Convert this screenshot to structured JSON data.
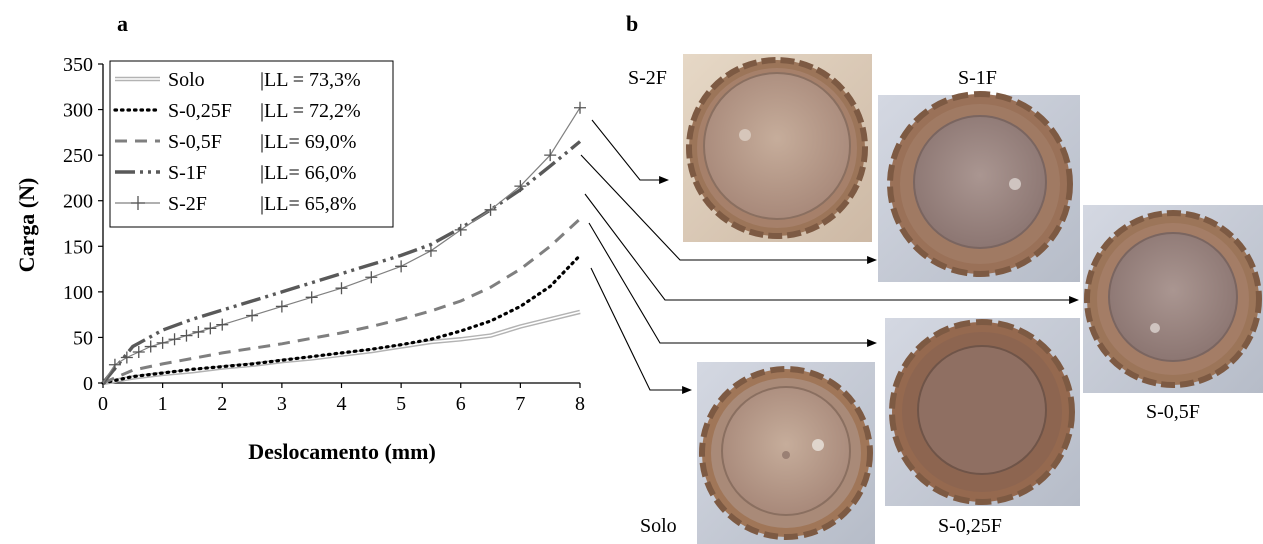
{
  "panels": {
    "a": "a",
    "b": "b"
  },
  "chart_data": {
    "type": "line",
    "xlabel": "Deslocamento (mm)",
    "ylabel": "Carga (N)",
    "xlim": [
      0,
      8
    ],
    "ylim": [
      0,
      350
    ],
    "xticks": [
      0,
      1,
      2,
      3,
      4,
      5,
      6,
      7,
      8
    ],
    "yticks": [
      0,
      50,
      100,
      150,
      200,
      250,
      300,
      350
    ],
    "grid": false,
    "legend_position": "top-left",
    "series": [
      {
        "name": "Solo",
        "ll": "|LL = 73,3%",
        "style": "double",
        "color": "#b3b3b3",
        "x": [
          0,
          0.5,
          1,
          1.5,
          2,
          2.5,
          3,
          3.5,
          4,
          4.5,
          5,
          5.5,
          6,
          6.5,
          7,
          7.5,
          8
        ],
        "y": [
          0,
          6,
          10,
          13,
          17,
          20,
          24,
          27,
          31,
          35,
          40,
          45,
          48,
          52,
          62,
          70,
          78
        ]
      },
      {
        "name": "S-0,25F",
        "ll": "|LL = 72,2%",
        "style": "dotted",
        "color": "#000000",
        "x": [
          0,
          0.5,
          1,
          1.5,
          2,
          2.5,
          3,
          3.5,
          4,
          4.5,
          5,
          5.5,
          6,
          6.5,
          7,
          7.5,
          8
        ],
        "y": [
          0,
          7,
          11,
          15,
          18,
          21,
          25,
          29,
          33,
          37,
          42,
          48,
          57,
          68,
          84,
          106,
          140
        ]
      },
      {
        "name": "S-0,5F",
        "ll": "|LL= 69,0%",
        "style": "dashed",
        "color": "#7f7f7f",
        "x": [
          0,
          0.5,
          1,
          1.5,
          2,
          2.5,
          3,
          3.5,
          4,
          4.5,
          5,
          5.5,
          6,
          6.5,
          7,
          7.5,
          8
        ],
        "y": [
          0,
          14,
          21,
          27,
          33,
          38,
          43,
          49,
          55,
          62,
          70,
          79,
          90,
          105,
          125,
          150,
          180
        ]
      },
      {
        "name": "S-1F",
        "ll": "|LL= 66,0%",
        "style": "dashdotdot",
        "color": "#595959",
        "x": [
          0,
          0.5,
          1,
          1.5,
          2,
          2.5,
          3,
          3.5,
          4,
          4.5,
          5,
          5.5,
          6,
          6.5,
          7,
          7.5,
          8
        ],
        "y": [
          0,
          40,
          58,
          70,
          80,
          90,
          100,
          110,
          120,
          130,
          140,
          152,
          170,
          190,
          212,
          238,
          265
        ]
      },
      {
        "name": "S-2F",
        "ll": "|LL= 65,8%",
        "style": "plus",
        "color": "#808080",
        "x": [
          0,
          0.2,
          0.4,
          0.6,
          0.8,
          1,
          1.2,
          1.4,
          1.6,
          1.8,
          2,
          2.5,
          3,
          3.5,
          4,
          4.5,
          5,
          5.5,
          6,
          6.5,
          7,
          7.5,
          8
        ],
        "y": [
          0,
          20,
          28,
          34,
          40,
          44,
          48,
          52,
          56,
          60,
          64,
          74,
          84,
          94,
          104,
          116,
          128,
          145,
          168,
          190,
          216,
          250,
          302
        ]
      }
    ]
  },
  "photos": [
    {
      "key": "s2f",
      "label": "S-2F"
    },
    {
      "key": "s1f",
      "label": "S-1F"
    },
    {
      "key": "s05f",
      "label": "S-0,5F"
    },
    {
      "key": "s025f",
      "label": "S-0,25F"
    },
    {
      "key": "solo",
      "label": "Solo"
    }
  ],
  "colors": {
    "soil": "#9c7559",
    "soil_dark": "#7d5a43",
    "disc_warm": "#b79b88",
    "disc_cool": "#9a8682",
    "bg_warm": "#d8c8b8",
    "bg_cool": "#c9ced8",
    "bg_solo": "#d0d4dc"
  }
}
